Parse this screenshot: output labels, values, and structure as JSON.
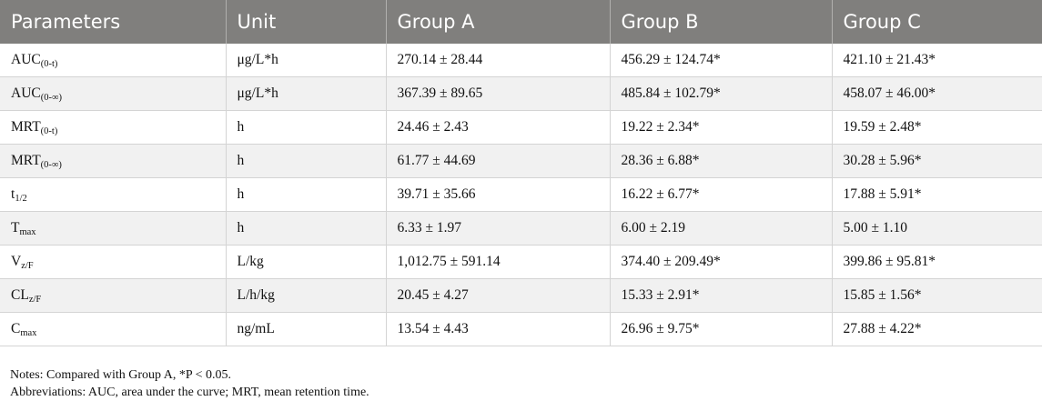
{
  "headers": [
    "Parameters",
    "Unit",
    "Group A",
    "Group B",
    "Group C"
  ],
  "rows": [
    {
      "param": {
        "main": "AUC",
        "sub": "(0-t)"
      },
      "unit": "μg/L*h",
      "a": "270.14 ± 28.44",
      "b": "456.29 ± 124.74*",
      "c": "421.10 ± 21.43*"
    },
    {
      "param": {
        "main": "AUC",
        "sub": "(0-∞)"
      },
      "unit": "μg/L*h",
      "a": "367.39 ± 89.65",
      "b": "485.84 ± 102.79*",
      "c": "458.07 ± 46.00*"
    },
    {
      "param": {
        "main": "MRT",
        "sub": "(0-t)"
      },
      "unit": "h",
      "a": "24.46 ± 2.43",
      "b": "19.22 ± 2.34*",
      "c": "19.59 ± 2.48*"
    },
    {
      "param": {
        "main": "MRT",
        "sub": "(0-∞)"
      },
      "unit": "h",
      "a": "61.77 ± 44.69",
      "b": "28.36 ± 6.88*",
      "c": "30.28 ± 5.96*"
    },
    {
      "param": {
        "main": "t",
        "sub": "1/2"
      },
      "unit": "h",
      "a": "39.71 ± 35.66",
      "b": "16.22 ± 6.77*",
      "c": "17.88 ± 5.91*"
    },
    {
      "param": {
        "main": "T",
        "sub": "max"
      },
      "unit": "h",
      "a": "6.33 ± 1.97",
      "b": "6.00 ± 2.19",
      "c": "5.00 ± 1.10"
    },
    {
      "param": {
        "main": "V",
        "sub": "z/F"
      },
      "unit": "L/kg",
      "a": "1,012.75 ± 591.14",
      "b": "374.40 ± 209.49*",
      "c": "399.86 ± 95.81*"
    },
    {
      "param": {
        "main": "CL",
        "sub": "z/F"
      },
      "unit": "L/h/kg",
      "a": "20.45 ± 4.27",
      "b": "15.33 ± 2.91*",
      "c": "15.85 ± 1.56*"
    },
    {
      "param": {
        "main": "C",
        "sub": "max"
      },
      "unit": "ng/mL",
      "a": "13.54 ± 4.43",
      "b": "26.96 ± 9.75*",
      "c": "27.88 ± 4.22*"
    }
  ],
  "notes": {
    "line1": "Notes: Compared with Group A, *P < 0.05.",
    "line2": "Abbreviations: AUC, area under the curve; MRT, mean retention time."
  }
}
